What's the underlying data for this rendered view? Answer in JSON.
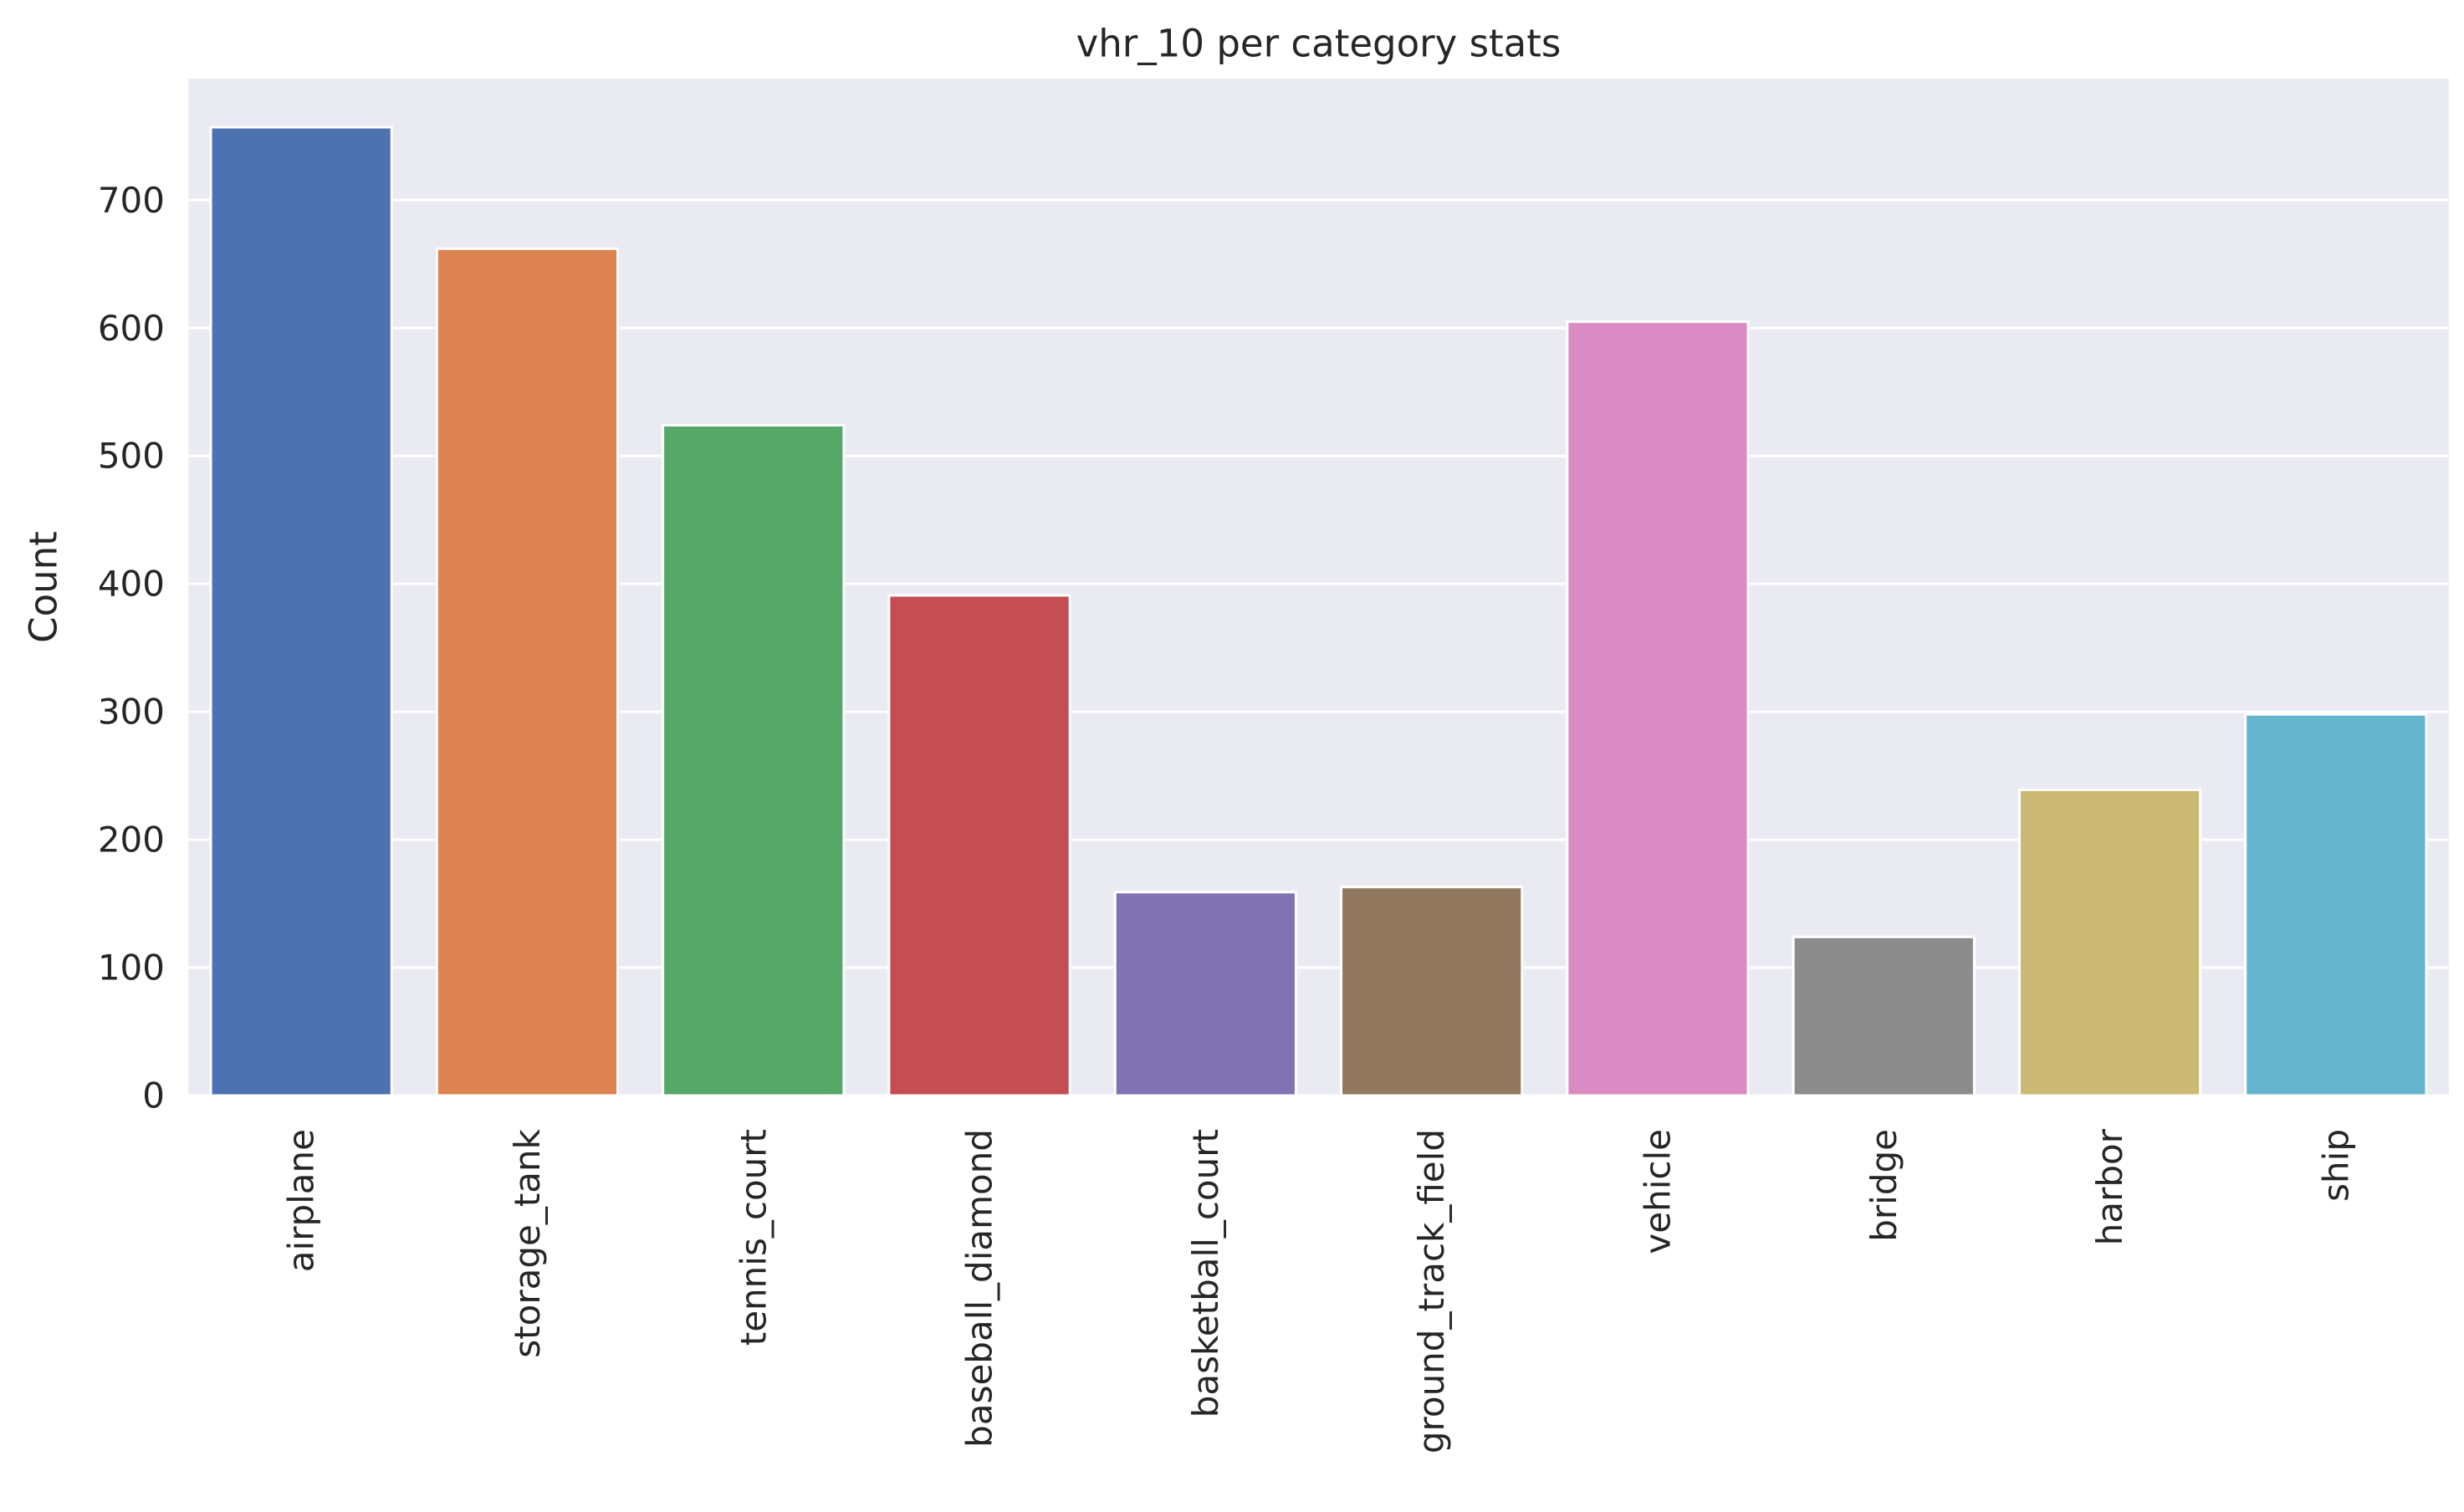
{
  "chart_data": {
    "type": "bar",
    "title": "vhr_10 per category stats",
    "xlabel": "",
    "ylabel": "Count",
    "categories": [
      "airplane",
      "storage_tank",
      "tennis_court",
      "baseball_diamond",
      "basketball_court",
      "ground_track_field",
      "vehicle",
      "bridge",
      "harbor",
      "ship"
    ],
    "values": [
      757,
      662,
      524,
      391,
      159,
      163,
      605,
      124,
      239,
      298
    ],
    "colors": [
      "#4c72b0",
      "#dd8452",
      "#55a868",
      "#c44e52",
      "#8172b3",
      "#937860",
      "#da8bc3",
      "#8c8c8c",
      "#ccb974",
      "#64b5cd"
    ],
    "ylim": [
      0,
      795
    ],
    "yticks": [
      0,
      100,
      200,
      300,
      400,
      500,
      600,
      700
    ],
    "grid": true,
    "style": {
      "plot_background": "#eaeaf2",
      "grid_color": "#ffffff",
      "bar_edge_color": "#ffffff",
      "text_color": "#262626"
    }
  }
}
